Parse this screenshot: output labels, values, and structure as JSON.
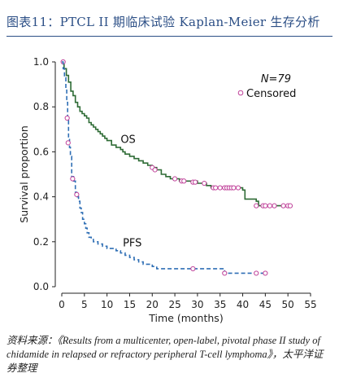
{
  "header": {
    "title": "图表11：PTCL II 期临床试验 Kaplan-Meier 生存分析"
  },
  "footer": {
    "source": "资料来源：《Results from a multicenter, open-label, pivotal phase II study of chidamide in relapsed or refractory peripheral T-cell lymphoma》，太平洋证券整理"
  },
  "colors": {
    "title": "#2c4f86",
    "os_line": "#2e6b35",
    "pfs_line": "#2f6fb5",
    "censor_marker": "#c0429a",
    "axis": "#222222"
  },
  "chart_data": {
    "type": "line",
    "title": "",
    "xlabel": "Time (months)",
    "ylabel": "Survival proportion",
    "xlim": [
      0,
      55
    ],
    "ylim": [
      0,
      1.0
    ],
    "x_ticks": [
      0,
      5,
      10,
      15,
      20,
      25,
      30,
      35,
      40,
      45,
      50,
      55
    ],
    "y_ticks": [
      0.0,
      0.2,
      0.4,
      0.6,
      0.8,
      1.0
    ],
    "y_tick_labels": [
      "0.0",
      "0.2",
      "0.4",
      "0.6",
      "0.8",
      "1.0"
    ],
    "grid": false,
    "n_label": "N=79",
    "legend": {
      "position": "top-right",
      "entries": [
        {
          "label": "Censored",
          "marker": "open-circle"
        }
      ]
    },
    "series": [
      {
        "name": "OS",
        "step": true,
        "points": [
          [
            0,
            1.0
          ],
          [
            0.5,
            0.97
          ],
          [
            1,
            0.94
          ],
          [
            1.5,
            0.91
          ],
          [
            2,
            0.87
          ],
          [
            2.5,
            0.85
          ],
          [
            3,
            0.82
          ],
          [
            3.5,
            0.8
          ],
          [
            4,
            0.78
          ],
          [
            4.5,
            0.77
          ],
          [
            5,
            0.76
          ],
          [
            5.5,
            0.75
          ],
          [
            6,
            0.73
          ],
          [
            6.5,
            0.72
          ],
          [
            7,
            0.71
          ],
          [
            7.5,
            0.7
          ],
          [
            8,
            0.69
          ],
          [
            8.5,
            0.68
          ],
          [
            9,
            0.67
          ],
          [
            9.5,
            0.66
          ],
          [
            10,
            0.65
          ],
          [
            11,
            0.63
          ],
          [
            12,
            0.62
          ],
          [
            13,
            0.61
          ],
          [
            13.5,
            0.6
          ],
          [
            14,
            0.59
          ],
          [
            15,
            0.58
          ],
          [
            16,
            0.57
          ],
          [
            17,
            0.56
          ],
          [
            18,
            0.55
          ],
          [
            19,
            0.54
          ],
          [
            20,
            0.53
          ],
          [
            21,
            0.52
          ],
          [
            22,
            0.5
          ],
          [
            23,
            0.49
          ],
          [
            24,
            0.48
          ],
          [
            26,
            0.47
          ],
          [
            30,
            0.46
          ],
          [
            32,
            0.45
          ],
          [
            33,
            0.44
          ],
          [
            40,
            0.43
          ],
          [
            40.5,
            0.39
          ],
          [
            43,
            0.38
          ],
          [
            43.5,
            0.36
          ],
          [
            51,
            0.36
          ]
        ],
        "censored": [
          [
            0.3,
            1.0
          ],
          [
            20,
            0.53
          ],
          [
            20.6,
            0.52
          ],
          [
            25,
            0.48
          ],
          [
            26.5,
            0.47
          ],
          [
            27,
            0.47
          ],
          [
            29,
            0.465
          ],
          [
            29.5,
            0.465
          ],
          [
            31.5,
            0.46
          ],
          [
            33.5,
            0.44
          ],
          [
            34,
            0.44
          ],
          [
            35,
            0.44
          ],
          [
            36,
            0.44
          ],
          [
            36.5,
            0.44
          ],
          [
            37,
            0.44
          ],
          [
            37.5,
            0.44
          ],
          [
            38,
            0.44
          ],
          [
            39,
            0.44
          ],
          [
            43,
            0.36
          ],
          [
            44.5,
            0.36
          ],
          [
            45,
            0.36
          ],
          [
            46,
            0.36
          ],
          [
            47,
            0.36
          ],
          [
            49,
            0.36
          ],
          [
            50,
            0.36
          ],
          [
            50.5,
            0.36
          ]
        ],
        "label_at": [
          13,
          0.64
        ]
      },
      {
        "name": "PFS",
        "step": true,
        "points": [
          [
            0,
            1.0
          ],
          [
            0.3,
            0.97
          ],
          [
            0.6,
            0.93
          ],
          [
            0.9,
            0.88
          ],
          [
            1.1,
            0.82
          ],
          [
            1.3,
            0.74
          ],
          [
            1.5,
            0.66
          ],
          [
            1.7,
            0.62
          ],
          [
            1.9,
            0.58
          ],
          [
            2.2,
            0.49
          ],
          [
            2.6,
            0.47
          ],
          [
            3,
            0.42
          ],
          [
            3.3,
            0.4
          ],
          [
            3.7,
            0.38
          ],
          [
            4,
            0.35
          ],
          [
            4.3,
            0.33
          ],
          [
            4.6,
            0.3
          ],
          [
            5,
            0.28
          ],
          [
            5.3,
            0.26
          ],
          [
            5.6,
            0.24
          ],
          [
            6,
            0.22
          ],
          [
            6.5,
            0.21
          ],
          [
            7,
            0.2
          ],
          [
            8,
            0.19
          ],
          [
            9,
            0.18
          ],
          [
            10,
            0.17
          ],
          [
            12,
            0.16
          ],
          [
            13,
            0.15
          ],
          [
            14,
            0.14
          ],
          [
            15,
            0.13
          ],
          [
            16,
            0.12
          ],
          [
            17,
            0.11
          ],
          [
            18,
            0.1
          ],
          [
            20,
            0.09
          ],
          [
            21,
            0.08
          ],
          [
            36,
            0.06
          ],
          [
            45,
            0.06
          ]
        ],
        "censored": [
          [
            1.2,
            0.75
          ],
          [
            1.4,
            0.64
          ],
          [
            2.4,
            0.48
          ],
          [
            3.3,
            0.41
          ],
          [
            29,
            0.08
          ],
          [
            36,
            0.06
          ],
          [
            43,
            0.06
          ],
          [
            45,
            0.06
          ]
        ],
        "label_at": [
          13.5,
          0.18
        ]
      }
    ]
  }
}
